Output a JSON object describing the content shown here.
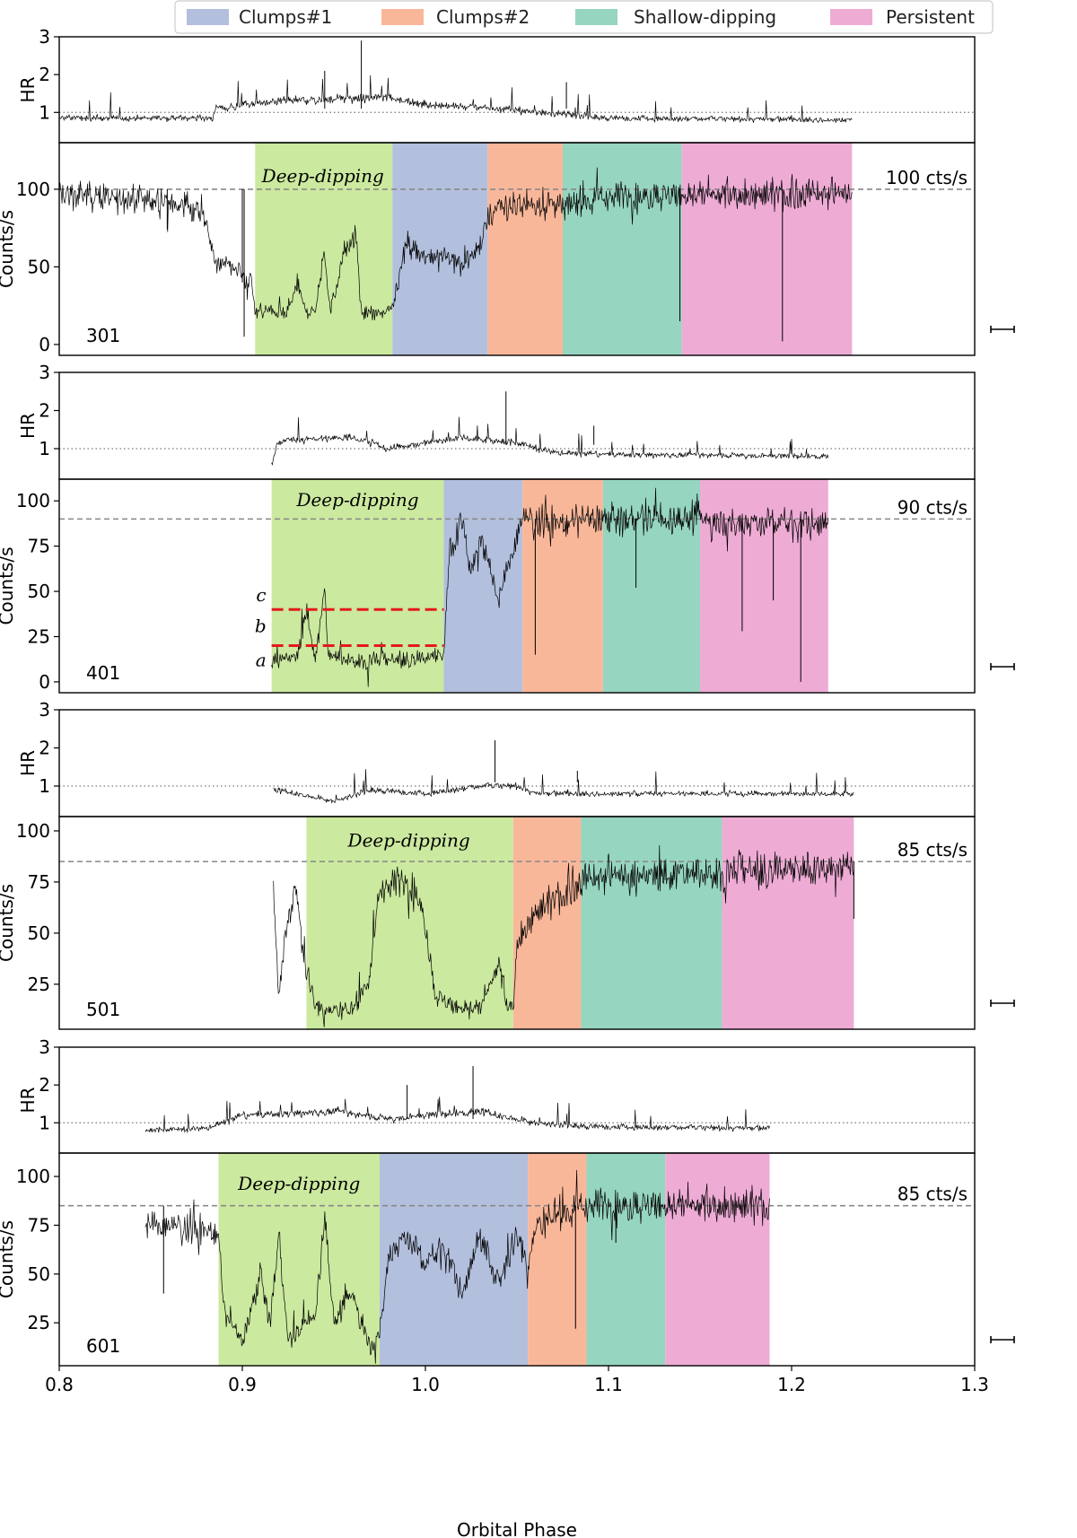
{
  "chart_data": {
    "type": "line",
    "xlabel": "Orbital Phase",
    "xlim": [
      0.8,
      1.3
    ],
    "x_ticks": [
      "0.8",
      "0.9",
      "1.0",
      "1.1",
      "1.2",
      "1.3"
    ],
    "x_tick_values": [
      0.8,
      0.9,
      1.0,
      1.1,
      1.2,
      1.3
    ],
    "legend": {
      "placement": "top-center",
      "entries": [
        {
          "name": "Clumps#1",
          "color": "#b2bfdd"
        },
        {
          "name": "Clumps#2",
          "color": "#f9b79a"
        },
        {
          "name": "Shallow-dipping",
          "color": "#96d5bf"
        },
        {
          "name": "Persistent",
          "color": "#eeacd5"
        }
      ]
    },
    "deep_dipping": {
      "name": "Deep-dipping",
      "color": "#cbe99f"
    },
    "hr_ylabel": "HR",
    "counts_ylabel": "Counts/s",
    "observations": [
      {
        "id": "301",
        "hr_ylim": [
          0.2,
          3
        ],
        "hr_ticks": [
          1,
          2,
          3
        ],
        "hr_ref": 1,
        "counts_ylim": [
          -7,
          130
        ],
        "counts_ticks": [
          0,
          50,
          100
        ],
        "ref_value": 100,
        "ref_label": "100 cts/s",
        "data_start": 0.8,
        "data_end": 1.233,
        "regions": {
          "deep": [
            0.907,
            0.982
          ],
          "clumps1": [
            0.982,
            1.034
          ],
          "clumps2": [
            1.034,
            1.075
          ],
          "shallow": [
            1.075,
            1.14
          ],
          "persistent": [
            1.14,
            1.233
          ]
        },
        "deep_label_x": 0.944,
        "deep_label_y": 108,
        "profile": [
          [
            0.8,
            97
          ],
          [
            0.86,
            92
          ],
          [
            0.878,
            88
          ],
          [
            0.885,
            55
          ],
          [
            0.895,
            50
          ],
          [
            0.905,
            40
          ],
          [
            0.907,
            22
          ],
          [
            0.925,
            20
          ],
          [
            0.93,
            40
          ],
          [
            0.935,
            20
          ],
          [
            0.94,
            22
          ],
          [
            0.945,
            60
          ],
          [
            0.948,
            20
          ],
          [
            0.955,
            58
          ],
          [
            0.962,
            70
          ],
          [
            0.965,
            20
          ],
          [
            0.975,
            20
          ],
          [
            0.982,
            25
          ],
          [
            0.99,
            65
          ],
          [
            1.0,
            55
          ],
          [
            1.01,
            60
          ],
          [
            1.02,
            50
          ],
          [
            1.03,
            65
          ],
          [
            1.034,
            80
          ],
          [
            1.04,
            90
          ],
          [
            1.075,
            90
          ],
          [
            1.1,
            95
          ],
          [
            1.14,
            96
          ],
          [
            1.233,
            97
          ]
        ],
        "hr_profile": [
          [
            0.8,
            0.85
          ],
          [
            0.884,
            0.85
          ],
          [
            0.885,
            1.1
          ],
          [
            0.92,
            1.3
          ],
          [
            0.95,
            1.35
          ],
          [
            0.98,
            1.4
          ],
          [
            1.0,
            1.2
          ],
          [
            1.04,
            1.1
          ],
          [
            1.075,
            0.95
          ],
          [
            1.1,
            0.85
          ],
          [
            1.233,
            0.8
          ]
        ],
        "dips": [
          [
            0.859,
            74
          ],
          [
            0.9,
            40
          ],
          [
            0.901,
            5
          ],
          [
            1.139,
            15
          ],
          [
            1.195,
            2
          ]
        ],
        "hr_spikes": [
          [
            0.965,
            2.9
          ],
          [
            0.945,
            2.1
          ],
          [
            1.077,
            1.8
          ]
        ]
      },
      {
        "id": "401",
        "hr_ylim": [
          0.2,
          3
        ],
        "hr_ticks": [
          1,
          2,
          3
        ],
        "hr_ref": 1,
        "counts_ylim": [
          -6,
          112
        ],
        "counts_ticks": [
          0,
          25,
          50,
          75,
          100
        ],
        "ref_value": 90,
        "ref_label": "90 cts/s",
        "data_start": 0.916,
        "data_end": 1.22,
        "regions": {
          "deep": [
            0.916,
            1.01
          ],
          "clumps1": [
            1.01,
            1.053
          ],
          "clumps2": [
            1.053,
            1.097
          ],
          "shallow": [
            1.097,
            1.15
          ],
          "persistent": [
            1.15,
            1.22
          ]
        },
        "deep_label_x": 0.963,
        "deep_label_y": 100,
        "profile": [
          [
            0.916,
            13
          ],
          [
            0.93,
            14
          ],
          [
            0.935,
            40
          ],
          [
            0.94,
            13
          ],
          [
            0.945,
            50
          ],
          [
            0.947,
            15
          ],
          [
            0.96,
            12
          ],
          [
            0.98,
            12
          ],
          [
            1.0,
            13
          ],
          [
            1.01,
            15
          ],
          [
            1.013,
            70
          ],
          [
            1.02,
            90
          ],
          [
            1.025,
            60
          ],
          [
            1.03,
            80
          ],
          [
            1.04,
            45
          ],
          [
            1.047,
            70
          ],
          [
            1.053,
            90
          ],
          [
            1.06,
            88
          ],
          [
            1.08,
            88
          ],
          [
            1.097,
            90
          ],
          [
            1.15,
            90
          ],
          [
            1.16,
            88
          ],
          [
            1.22,
            88
          ]
        ],
        "hr_profile": [
          [
            0.916,
            0.6
          ],
          [
            0.92,
            1.2
          ],
          [
            0.96,
            1.3
          ],
          [
            0.98,
            1.0
          ],
          [
            1.0,
            1.15
          ],
          [
            1.02,
            1.3
          ],
          [
            1.05,
            1.15
          ],
          [
            1.07,
            0.9
          ],
          [
            1.1,
            0.85
          ],
          [
            1.22,
            0.8
          ]
        ],
        "dips": [
          [
            1.06,
            15
          ],
          [
            1.115,
            52
          ],
          [
            1.173,
            28
          ],
          [
            1.205,
            0
          ],
          [
            1.19,
            45
          ]
        ],
        "hr_spikes": [
          [
            1.044,
            2.5
          ],
          [
            1.092,
            1.6
          ]
        ],
        "levels": [
          {
            "label": "a",
            "value": 20
          },
          {
            "label": "b",
            "value": 40
          }
        ],
        "level_labels": [
          {
            "text": "c",
            "y": 48
          },
          {
            "text": "b",
            "y": 31
          },
          {
            "text": "a",
            "y": 12
          }
        ]
      },
      {
        "id": "501",
        "hr_ylim": [
          0.2,
          3
        ],
        "hr_ticks": [
          1,
          2,
          3
        ],
        "hr_ref": 1,
        "counts_ylim": [
          3,
          107
        ],
        "counts_ticks": [
          25,
          50,
          75,
          100
        ],
        "ref_value": 85,
        "ref_label": "85 cts/s",
        "data_start": 0.917,
        "data_end": 1.234,
        "regions": {
          "deep": [
            0.935,
            1.048
          ],
          "clumps2": [
            1.048,
            1.085
          ],
          "shallow": [
            1.085,
            1.162
          ],
          "persistent": [
            1.162,
            1.234
          ]
        },
        "deep_label_x": 0.991,
        "deep_label_y": 95,
        "profile": [
          [
            0.917,
            68
          ],
          [
            0.92,
            20
          ],
          [
            0.925,
            60
          ],
          [
            0.93,
            70
          ],
          [
            0.933,
            40
          ],
          [
            0.937,
            25
          ],
          [
            0.94,
            14
          ],
          [
            0.96,
            12
          ],
          [
            0.97,
            30
          ],
          [
            0.975,
            72
          ],
          [
            0.99,
            75
          ],
          [
            0.995,
            70
          ],
          [
            1.0,
            55
          ],
          [
            1.005,
            20
          ],
          [
            1.015,
            14
          ],
          [
            1.03,
            13
          ],
          [
            1.04,
            35
          ],
          [
            1.045,
            13
          ],
          [
            1.048,
            15
          ],
          [
            1.05,
            45
          ],
          [
            1.06,
            60
          ],
          [
            1.085,
            75
          ],
          [
            1.1,
            78
          ],
          [
            1.162,
            80
          ],
          [
            1.234,
            82
          ]
        ],
        "hr_profile": [
          [
            0.917,
            0.9
          ],
          [
            0.93,
            0.8
          ],
          [
            0.95,
            0.6
          ],
          [
            0.97,
            0.9
          ],
          [
            1.0,
            0.8
          ],
          [
            1.03,
            1.0
          ],
          [
            1.05,
            1.0
          ],
          [
            1.06,
            0.8
          ],
          [
            1.234,
            0.8
          ]
        ],
        "dips": [
          [
            1.234,
            57
          ]
        ],
        "hr_spikes": [
          [
            1.038,
            2.2
          ],
          [
            1.083,
            1.4
          ]
        ]
      },
      {
        "id": "601",
        "hr_ylim": [
          0.2,
          3
        ],
        "hr_ticks": [
          1,
          2,
          3
        ],
        "hr_ref": 1,
        "counts_ylim": [
          3,
          112
        ],
        "counts_ticks": [
          25,
          50,
          75,
          100
        ],
        "ref_value": 85,
        "ref_label": "85 cts/s",
        "data_start": 0.847,
        "data_end": 1.188,
        "regions": {
          "deep": [
            0.887,
            0.975
          ],
          "clumps1": [
            0.975,
            1.056
          ],
          "clumps2": [
            1.056,
            1.088
          ],
          "shallow": [
            1.088,
            1.131
          ],
          "persistent": [
            1.131,
            1.188
          ]
        },
        "deep_label_x": 0.931,
        "deep_label_y": 96,
        "profile": [
          [
            0.847,
            75
          ],
          [
            0.885,
            72
          ],
          [
            0.887,
            70
          ],
          [
            0.89,
            30
          ],
          [
            0.9,
            15
          ],
          [
            0.91,
            50
          ],
          [
            0.915,
            25
          ],
          [
            0.92,
            70
          ],
          [
            0.925,
            15
          ],
          [
            0.94,
            30
          ],
          [
            0.945,
            80
          ],
          [
            0.95,
            25
          ],
          [
            0.96,
            40
          ],
          [
            0.97,
            12
          ],
          [
            0.975,
            20
          ],
          [
            0.98,
            60
          ],
          [
            0.99,
            70
          ],
          [
            1.0,
            55
          ],
          [
            1.01,
            65
          ],
          [
            1.02,
            40
          ],
          [
            1.03,
            70
          ],
          [
            1.04,
            45
          ],
          [
            1.05,
            70
          ],
          [
            1.056,
            55
          ],
          [
            1.06,
            75
          ],
          [
            1.07,
            80
          ],
          [
            1.088,
            85
          ],
          [
            1.188,
            85
          ]
        ],
        "hr_profile": [
          [
            0.847,
            0.8
          ],
          [
            0.88,
            0.85
          ],
          [
            0.9,
            1.2
          ],
          [
            0.95,
            1.3
          ],
          [
            0.98,
            1.1
          ],
          [
            1.0,
            1.2
          ],
          [
            1.03,
            1.3
          ],
          [
            1.06,
            1.0
          ],
          [
            1.09,
            0.9
          ],
          [
            1.188,
            0.85
          ]
        ],
        "dips": [
          [
            0.857,
            40
          ],
          [
            1.082,
            22
          ],
          [
            1.104,
            66
          ]
        ],
        "hr_spikes": [
          [
            1.026,
            2.5
          ],
          [
            0.99,
            2.0
          ]
        ]
      }
    ]
  }
}
